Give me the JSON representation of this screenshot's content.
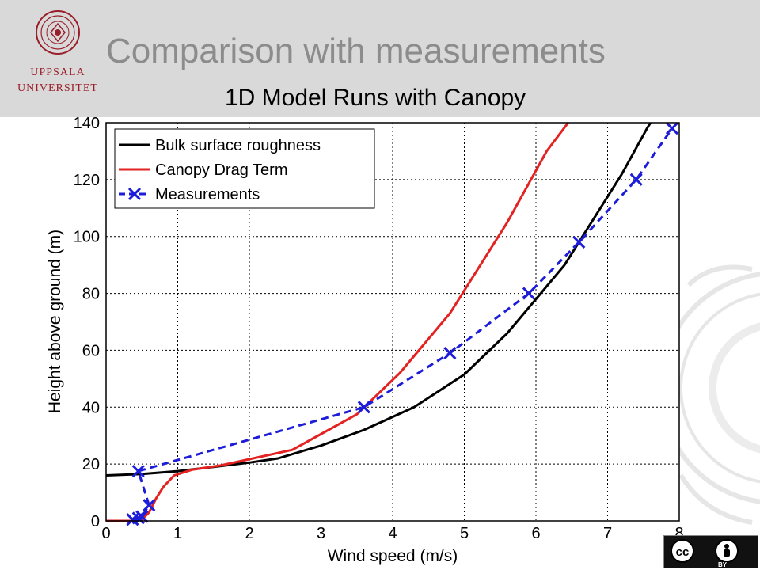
{
  "header": {
    "title": "Comparison with measurements",
    "logo": {
      "line1": "UPPSALA",
      "line2": "UNIVERSITET",
      "color": "#9a1e2a"
    }
  },
  "license_badge": {
    "icon_left": "cc-icon",
    "icon_right": "attribution-icon",
    "left_text": "cc",
    "label": "BY"
  },
  "chart_data": {
    "type": "line",
    "title": "1D Model Runs with Canopy",
    "xlabel": "Wind speed (m/s)",
    "ylabel": "Height above ground (m)",
    "xlim": [
      0,
      8
    ],
    "ylim": [
      0,
      140
    ],
    "xticks": [
      "0",
      "1",
      "2",
      "3",
      "4",
      "5",
      "6",
      "7",
      "8"
    ],
    "yticks": [
      "0",
      "20",
      "40",
      "60",
      "80",
      "100",
      "120",
      "140"
    ],
    "grid": true,
    "legend": "top-left",
    "series": [
      {
        "name": "Bulk surface roughness",
        "color": "#000000",
        "style": "solid",
        "marker": "none",
        "points": [
          [
            0,
            16
          ],
          [
            0.5,
            16.5
          ],
          [
            1,
            17.5
          ],
          [
            1.5,
            19
          ],
          [
            2,
            20.5
          ],
          [
            2.4,
            22
          ],
          [
            3,
            26.5
          ],
          [
            3.6,
            32
          ],
          [
            4.3,
            40
          ],
          [
            5,
            51.5
          ],
          [
            5.6,
            66
          ],
          [
            6,
            78
          ],
          [
            6.4,
            90
          ],
          [
            6.8,
            106
          ],
          [
            7.2,
            122
          ],
          [
            7.55,
            138
          ],
          [
            7.6,
            140
          ]
        ]
      },
      {
        "name": "Canopy Drag Term",
        "color": "#e32222",
        "style": "solid",
        "marker": "none",
        "points": [
          [
            0,
            0
          ],
          [
            0.35,
            0
          ],
          [
            0.5,
            0.5
          ],
          [
            0.6,
            3
          ],
          [
            0.7,
            8
          ],
          [
            0.8,
            12
          ],
          [
            0.95,
            16
          ],
          [
            1.2,
            18
          ],
          [
            1.6,
            19.5
          ],
          [
            2.6,
            25
          ],
          [
            3.5,
            37.5
          ],
          [
            4.1,
            52
          ],
          [
            4.8,
            73
          ],
          [
            5.6,
            105
          ],
          [
            6.15,
            130
          ],
          [
            6.45,
            140
          ]
        ]
      },
      {
        "name": "Measurements",
        "color": "#1c1cd9",
        "style": "dashed",
        "marker": "x",
        "points": [
          [
            0.37,
            0.5
          ],
          [
            0.45,
            1
          ],
          [
            0.5,
            1.5
          ],
          [
            0.6,
            5.5
          ],
          [
            0.45,
            17.5
          ],
          [
            3.6,
            40
          ],
          [
            4.8,
            59
          ],
          [
            5.9,
            80
          ],
          [
            6.6,
            98
          ],
          [
            7.4,
            120
          ],
          [
            7.9,
            138
          ]
        ]
      }
    ]
  }
}
